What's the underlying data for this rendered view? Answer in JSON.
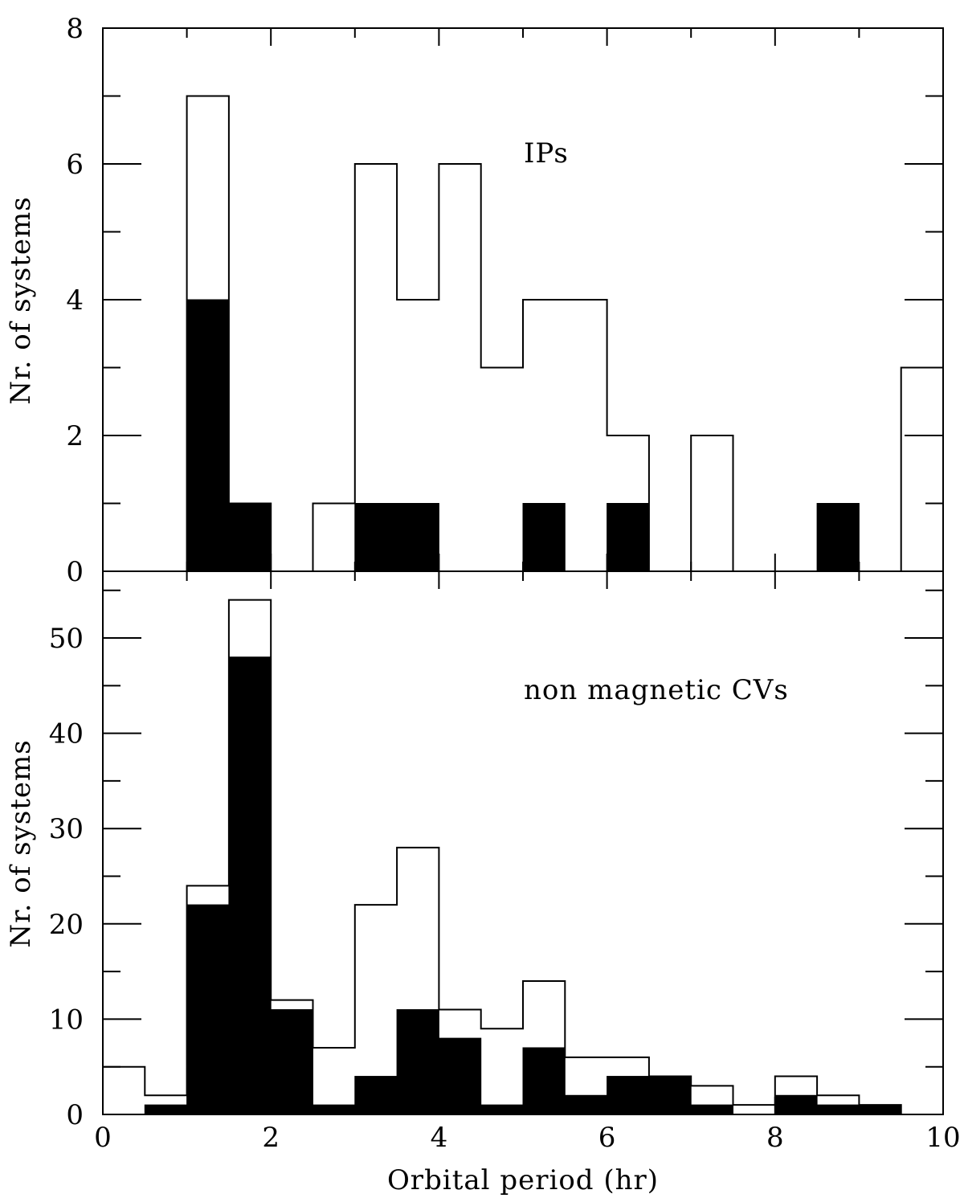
{
  "chart_data": [
    {
      "type": "histogram",
      "panel": "top",
      "annotation": "IPs",
      "ylabel": "Nr. of systems",
      "xlim": [
        0,
        10
      ],
      "ylim": [
        0,
        8
      ],
      "x_ticks_labeled": false,
      "y_tick_labels": [
        "0",
        "2",
        "4",
        "6",
        "8"
      ],
      "bin_width": 0.5,
      "bin_edges": [
        0,
        0.5,
        1,
        1.5,
        2,
        2.5,
        3,
        3.5,
        4,
        4.5,
        5,
        5.5,
        6,
        6.5,
        7,
        7.5,
        8,
        8.5,
        9,
        9.5,
        10
      ],
      "series": [
        {
          "style": "outline",
          "color": "#000000",
          "values": [
            0,
            0,
            7,
            1,
            0,
            1,
            6,
            4,
            6,
            3,
            4,
            4,
            2,
            0,
            2,
            0,
            0,
            0,
            0,
            3
          ]
        },
        {
          "style": "filled",
          "color": "#000000",
          "values": [
            0,
            0,
            4,
            1,
            0,
            0,
            1,
            1,
            0,
            0,
            1,
            0,
            1,
            0,
            0,
            0,
            0,
            1,
            0,
            0
          ]
        }
      ]
    },
    {
      "type": "histogram",
      "panel": "bottom",
      "annotation": "non magnetic CVs",
      "xlabel": "Orbital period (hr)",
      "ylabel": "Nr. of systems",
      "xlim": [
        0,
        10
      ],
      "ylim": [
        0,
        57
      ],
      "x_tick_labels": [
        "0",
        "2",
        "4",
        "6",
        "8",
        "10"
      ],
      "y_tick_labels": [
        "0",
        "10",
        "20",
        "30",
        "40",
        "50"
      ],
      "bin_width": 0.5,
      "bin_edges": [
        0,
        0.5,
        1,
        1.5,
        2,
        2.5,
        3,
        3.5,
        4,
        4.5,
        5,
        5.5,
        6,
        6.5,
        7,
        7.5,
        8,
        8.5,
        9,
        9.5,
        10
      ],
      "series": [
        {
          "style": "outline",
          "color": "#000000",
          "values": [
            5,
            2,
            24,
            54,
            12,
            7,
            22,
            28,
            11,
            9,
            14,
            6,
            6,
            4,
            3,
            1,
            4,
            2,
            1,
            0
          ]
        },
        {
          "style": "filled",
          "color": "#000000",
          "values": [
            0,
            1,
            22,
            48,
            11,
            1,
            4,
            11,
            8,
            1,
            7,
            2,
            4,
            4,
            1,
            0,
            2,
            1,
            1,
            0
          ]
        }
      ]
    }
  ]
}
